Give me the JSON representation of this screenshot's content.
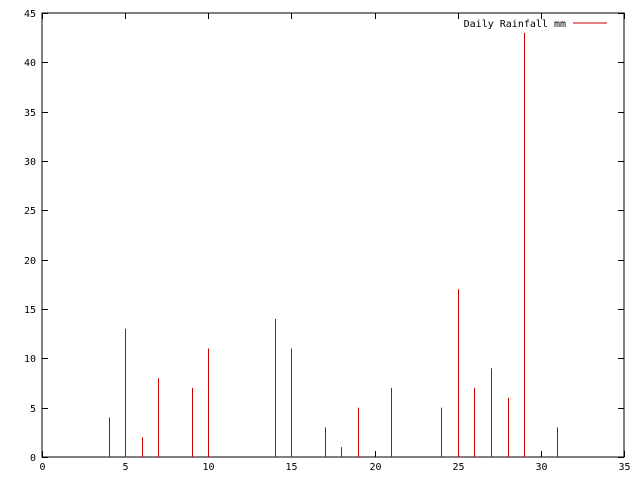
{
  "chart_data": {
    "type": "bar",
    "title": "",
    "xlabel": "",
    "ylabel": "",
    "xlim": [
      0,
      35
    ],
    "ylim": [
      0,
      45
    ],
    "x_ticks": [
      0,
      5,
      10,
      15,
      20,
      25,
      30,
      35
    ],
    "y_ticks": [
      0,
      5,
      10,
      15,
      20,
      25,
      30,
      35,
      40,
      45
    ],
    "grid": false,
    "legend_position": "top-right",
    "series": [
      {
        "name": "Daily Rainfall mm",
        "color": "#cc0000",
        "points": [
          {
            "x": 4,
            "y": 4
          },
          {
            "x": 5,
            "y": 13
          },
          {
            "x": 6,
            "y": 2
          },
          {
            "x": 7,
            "y": 8
          },
          {
            "x": 9,
            "y": 7
          },
          {
            "x": 10,
            "y": 11
          },
          {
            "x": 14,
            "y": 14
          },
          {
            "x": 15,
            "y": 11
          },
          {
            "x": 17,
            "y": 3
          },
          {
            "x": 18,
            "y": 1
          },
          {
            "x": 19,
            "y": 5
          },
          {
            "x": 21,
            "y": 7
          },
          {
            "x": 24,
            "y": 5
          },
          {
            "x": 25,
            "y": 17
          },
          {
            "x": 26,
            "y": 7
          },
          {
            "x": 27,
            "y": 9
          },
          {
            "x": 28,
            "y": 6
          },
          {
            "x": 29,
            "y": 43
          },
          {
            "x": 31,
            "y": 3
          }
        ]
      }
    ]
  }
}
